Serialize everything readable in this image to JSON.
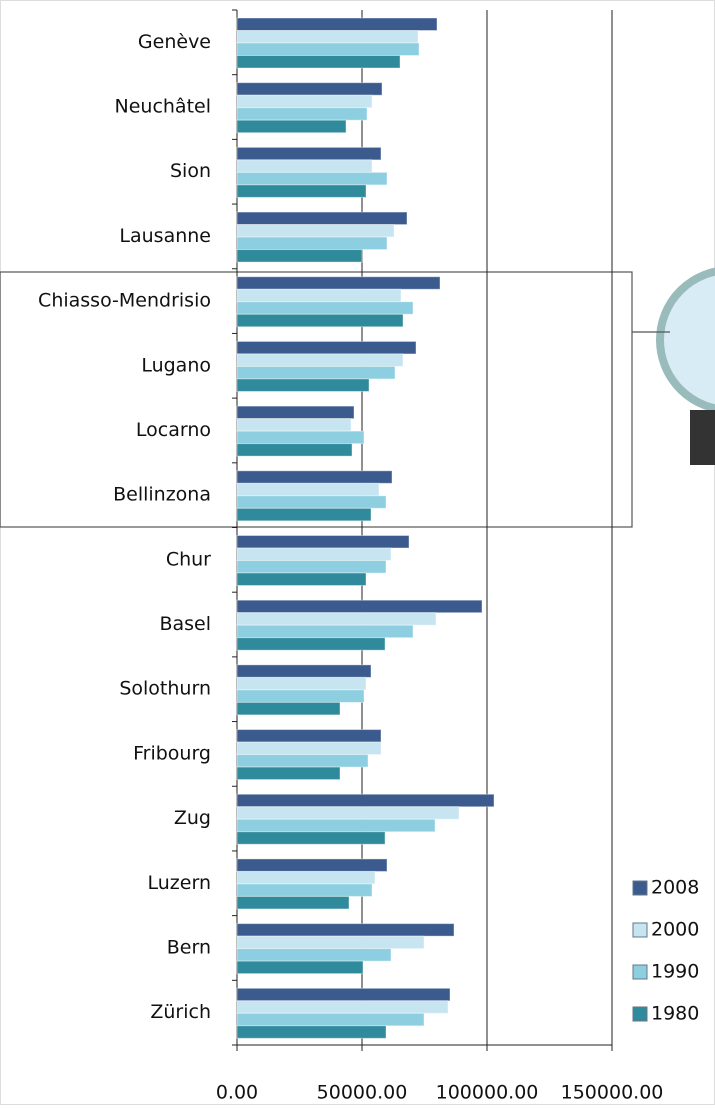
{
  "chart_data": {
    "type": "bar",
    "orientation": "horizontal",
    "categories": [
      "Genève",
      "Neuchâtel",
      "Sion",
      "Lausanne",
      "Chiasso-Mendrisio",
      "Lugano",
      "Locarno",
      "Bellinzona",
      "Chur",
      "Basel",
      "Solothurn",
      "Fribourg",
      "Zug",
      "Luzern",
      "Bern",
      "Zürich"
    ],
    "series": [
      {
        "name": "2008",
        "color": "#3b5b8e",
        "values": [
          80000,
          58000,
          57600,
          68000,
          81200,
          71600,
          46800,
          62000,
          68800,
          98000,
          53600,
          57600,
          102800,
          60000,
          86800,
          85200
        ]
      },
      {
        "name": "2000",
        "color": "#c6e5f1",
        "values": [
          72400,
          54000,
          54000,
          62800,
          65600,
          66400,
          45600,
          56800,
          61600,
          79600,
          51600,
          57600,
          88800,
          55200,
          74800,
          84400
        ]
      },
      {
        "name": "1990",
        "color": "#8dcfe0",
        "values": [
          72800,
          52000,
          60000,
          60000,
          70400,
          63200,
          50800,
          59600,
          59600,
          70400,
          50800,
          52400,
          79200,
          54000,
          61600,
          74800
        ]
      },
      {
        "name": "1980",
        "color": "#2f8a9c",
        "values": [
          65200,
          43600,
          51600,
          50000,
          66400,
          52800,
          46000,
          53600,
          51600,
          59200,
          41200,
          41200,
          59200,
          44800,
          50400,
          59600
        ]
      }
    ],
    "xlim": [
      0,
      150000
    ],
    "xticks": [
      {
        "value": 0,
        "label": "0.00"
      },
      {
        "value": 50000,
        "label": "50000.00"
      },
      {
        "value": 100000,
        "label": "100000.00"
      },
      {
        "value": 150000,
        "label": "150000.00"
      }
    ],
    "grid": true,
    "legend": "bottom-right"
  }
}
